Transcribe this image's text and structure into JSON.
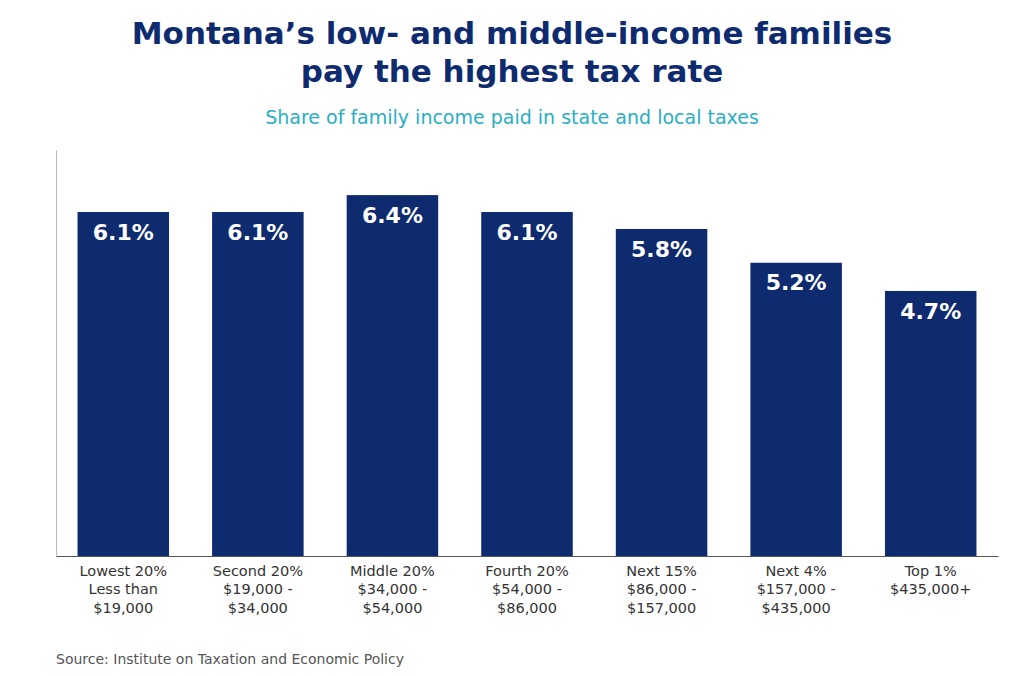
{
  "chart_data": {
    "type": "bar",
    "title": "Montana’s low- and middle-income families\npay the highest tax rate",
    "subtitle": "Share of family income paid in state and local taxes",
    "annotations": [
      "Source: Institute on Taxation and Economic Policy"
    ],
    "categories": [
      "Lowest 20%\nLess than\n$19,000",
      "Second 20%\n$19,000 -\n$34,000",
      "Middle 20%\n$34,000 -\n$54,000",
      "Fourth 20%\n$54,000 -\n$86,000",
      "Next 15%\n$86,000 -\n$157,000",
      "Next 4%\n$157,000 -\n$435,000",
      "Top 1%\n$435,000+"
    ],
    "values": [
      6.1,
      6.1,
      6.4,
      6.1,
      5.8,
      5.2,
      4.7
    ],
    "value_labels": [
      "6.1%",
      "6.1%",
      "6.4%",
      "6.1%",
      "5.8%",
      "5.2%",
      "4.7%"
    ],
    "data_labels": true,
    "color": "#0d2b6e",
    "ylim": [
      0,
      7.2
    ],
    "grid": false,
    "tick_labels": "x"
  }
}
